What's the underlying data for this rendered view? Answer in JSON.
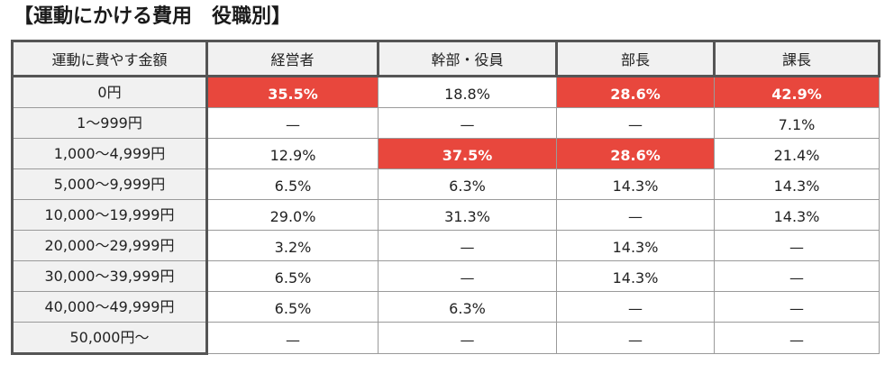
{
  "title": "【運動にかける費用　役職別】",
  "colors": {
    "highlight": "#e8473d",
    "header_bg": "#f1f1f1",
    "border_dark": "#555555",
    "border_light": "#9a9a9a"
  },
  "table": {
    "headers": [
      "運動に費やす金額",
      "経営者",
      "幹部・役員",
      "部長",
      "課長"
    ],
    "rows": [
      {
        "label": "0円",
        "cells": [
          "35.5%",
          "18.8%",
          "28.6%",
          "42.9%"
        ],
        "highlight": [
          true,
          false,
          true,
          true
        ]
      },
      {
        "label": "1～999円",
        "cells": [
          "—",
          "—",
          "—",
          "7.1%"
        ],
        "highlight": [
          false,
          false,
          false,
          false
        ]
      },
      {
        "label": "1,000～4,999円",
        "cells": [
          "12.9%",
          "37.5%",
          "28.6%",
          "21.4%"
        ],
        "highlight": [
          false,
          true,
          true,
          false
        ]
      },
      {
        "label": "5,000～9,999円",
        "cells": [
          "6.5%",
          "6.3%",
          "14.3%",
          "14.3%"
        ],
        "highlight": [
          false,
          false,
          false,
          false
        ]
      },
      {
        "label": "10,000～19,999円",
        "cells": [
          "29.0%",
          "31.3%",
          "—",
          "14.3%"
        ],
        "highlight": [
          false,
          false,
          false,
          false
        ]
      },
      {
        "label": "20,000～29,999円",
        "cells": [
          "3.2%",
          "—",
          "14.3%",
          "—"
        ],
        "highlight": [
          false,
          false,
          false,
          false
        ]
      },
      {
        "label": "30,000～39,999円",
        "cells": [
          "6.5%",
          "—",
          "14.3%",
          "—"
        ],
        "highlight": [
          false,
          false,
          false,
          false
        ]
      },
      {
        "label": "40,000～49,999円",
        "cells": [
          "6.5%",
          "6.3%",
          "—",
          "—"
        ],
        "highlight": [
          false,
          false,
          false,
          false
        ]
      },
      {
        "label": "50,000円～",
        "cells": [
          "—",
          "—",
          "—",
          "—"
        ],
        "highlight": [
          false,
          false,
          false,
          false
        ]
      }
    ]
  }
}
